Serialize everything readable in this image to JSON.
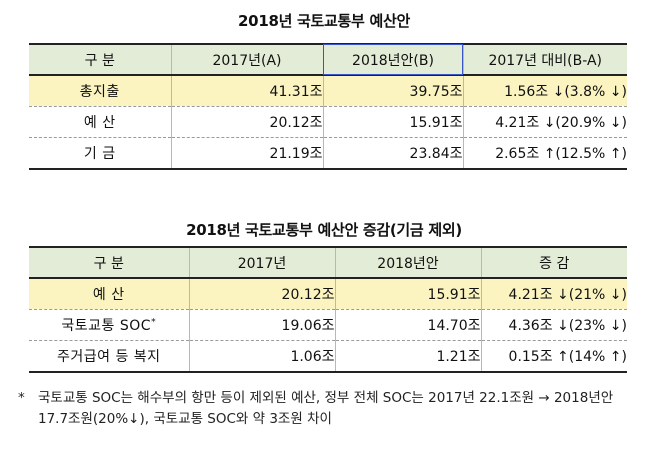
{
  "table1": {
    "title": "2018년  국토교통부  예산안",
    "headers": [
      "구  분",
      "2017년(A)",
      "2018년안(B)",
      "2017년 대비(B-A)"
    ],
    "rows": [
      {
        "label": "총지출",
        "y2017": "41.31조",
        "y2018": "39.75조",
        "diff": "1.56조 ↓(3.8% ↓)"
      },
      {
        "label": "예  산",
        "y2017": "20.12조",
        "y2018": "15.91조",
        "diff": "4.21조 ↓(20.9% ↓)"
      },
      {
        "label": "기  금",
        "y2017": "21.19조",
        "y2018": "23.84조",
        "diff": "2.65조 ↑(12.5% ↑)"
      }
    ]
  },
  "table2": {
    "title": "2018년  국토교통부  예산안  증감(기금  제외)",
    "headers": [
      "구  분",
      "2017년",
      "2018년안",
      "증  감"
    ],
    "rows": [
      {
        "label": "예  산",
        "label_sup": "",
        "y2017": "20.12조",
        "y2018": "15.91조",
        "diff": "4.21조 ↓(21% ↓)"
      },
      {
        "label": "국토교통  SOC",
        "label_sup": "*",
        "y2017": "19.06조",
        "y2018": "14.70조",
        "diff": "4.36조 ↓(23% ↓)"
      },
      {
        "label": "주거급여 등 복지",
        "label_sup": "",
        "y2017": "1.06조",
        "y2018": "1.21조",
        "diff": "0.15조 ↑(14% ↑)"
      }
    ]
  },
  "footnote": {
    "marker": "*",
    "text": "국토교통 SOC는 해수부의 항만 등이 제외된 예산, 정부 전체 SOC는 2017년 22.1조원 → 2018년안 17.7조원(20%↓), 국토교통 SOC와 약 3조원 차이"
  }
}
